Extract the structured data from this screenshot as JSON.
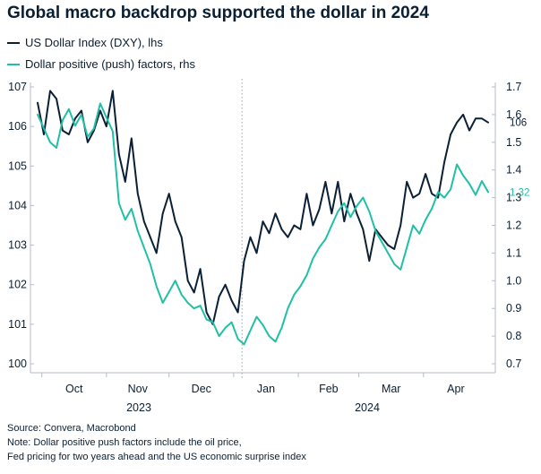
{
  "chart_data": {
    "type": "line",
    "title": "Global macro backdrop supported the dollar in 2024",
    "legend": [
      {
        "name": "US Dollar Index (DXY), lhs",
        "color": "#0b2036"
      },
      {
        "name": "Dollar positive (push) factors, rhs",
        "color": "#1fc0a6"
      }
    ],
    "y_left": {
      "ticks": [
        "100",
        "101",
        "102",
        "103",
        "104",
        "105",
        "106",
        "107"
      ],
      "range": [
        100,
        107
      ]
    },
    "y_right": {
      "ticks": [
        "0.7",
        "0.8",
        "0.9",
        "1.0",
        "1.1",
        "1.2",
        "1.3",
        "1.4",
        "1.5",
        "1.6",
        "1.7"
      ],
      "range": [
        0.7,
        1.7
      ]
    },
    "x_months": [
      "Oct",
      "Nov",
      "Dec",
      "Jan",
      "Feb",
      "Mar",
      "Apr"
    ],
    "x_years": [
      "2023",
      "2024"
    ],
    "x_range": [
      0,
      216
    ],
    "divider_x": 98,
    "end_labels": {
      "dxy": "106",
      "push": "1.32"
    },
    "series": [
      {
        "name": "US Dollar Index (DXY), lhs",
        "axis": "left",
        "x": [
          0,
          3,
          6,
          9,
          12,
          15,
          18,
          21,
          24,
          27,
          30,
          33,
          36,
          39,
          42,
          45,
          48,
          51,
          54,
          57,
          60,
          63,
          66,
          69,
          72,
          75,
          78,
          81,
          84,
          87,
          90,
          93,
          96,
          99,
          102,
          105,
          108,
          111,
          114,
          117,
          120,
          123,
          126,
          129,
          132,
          135,
          138,
          141,
          144,
          147,
          150,
          153,
          156,
          159,
          162,
          165,
          168,
          171,
          174,
          177,
          180,
          183,
          186,
          189,
          192,
          195,
          198,
          201,
          204,
          207,
          210,
          213,
          216
        ],
        "values": [
          106.6,
          105.8,
          106.9,
          106.7,
          105.9,
          105.8,
          106.2,
          106.4,
          105.6,
          105.9,
          106.4,
          106.0,
          106.9,
          105.3,
          104.6,
          105.7,
          104.3,
          103.6,
          103.2,
          102.8,
          103.8,
          104.3,
          103.6,
          103.2,
          102.1,
          101.8,
          102.4,
          101.3,
          101.0,
          101.7,
          102.0,
          101.6,
          101.3,
          102.6,
          103.2,
          102.8,
          103.6,
          103.3,
          103.8,
          103.4,
          103.2,
          103.5,
          103.4,
          104.3,
          103.5,
          103.9,
          104.6,
          103.8,
          104.6,
          103.6,
          104.3,
          103.8,
          103.4,
          102.6,
          103.4,
          103.2,
          103.0,
          102.9,
          103.5,
          104.6,
          104.2,
          104.3,
          104.8,
          104.3,
          104.2,
          105.1,
          105.8,
          106.1,
          106.3,
          105.9,
          106.2,
          106.2,
          106.1
        ]
      },
      {
        "name": "Dollar positive (push) factors, rhs",
        "axis": "right",
        "x": [
          0,
          3,
          6,
          9,
          12,
          15,
          18,
          21,
          24,
          27,
          30,
          33,
          36,
          39,
          42,
          45,
          48,
          51,
          54,
          57,
          60,
          63,
          66,
          69,
          72,
          75,
          78,
          81,
          84,
          87,
          90,
          93,
          96,
          99,
          102,
          105,
          108,
          111,
          114,
          117,
          120,
          123,
          126,
          129,
          132,
          135,
          138,
          141,
          144,
          147,
          150,
          153,
          156,
          159,
          162,
          165,
          168,
          171,
          174,
          177,
          180,
          183,
          186,
          189,
          192,
          195,
          198,
          201,
          204,
          207,
          210,
          213,
          216
        ],
        "values": [
          1.6,
          1.55,
          1.5,
          1.48,
          1.58,
          1.62,
          1.56,
          1.6,
          1.52,
          1.55,
          1.64,
          1.59,
          1.54,
          1.28,
          1.22,
          1.26,
          1.18,
          1.12,
          1.06,
          0.98,
          0.92,
          0.96,
          1.0,
          0.95,
          0.92,
          0.9,
          0.91,
          0.86,
          0.85,
          0.8,
          0.83,
          0.85,
          0.79,
          0.77,
          0.82,
          0.87,
          0.84,
          0.8,
          0.78,
          0.83,
          0.9,
          0.95,
          0.98,
          1.02,
          1.08,
          1.12,
          1.15,
          1.2,
          1.25,
          1.28,
          1.23,
          1.27,
          1.3,
          1.25,
          1.18,
          1.14,
          1.1,
          1.06,
          1.04,
          1.12,
          1.2,
          1.17,
          1.22,
          1.26,
          1.32,
          1.3,
          1.33,
          1.42,
          1.38,
          1.35,
          1.31,
          1.36,
          1.32
        ]
      }
    ]
  },
  "footer": {
    "source": "Source: Convera, Macrobond",
    "note_line1": "Note: Dollar positive push factors include the oil price,",
    "note_line2": "Fed pricing for two years ahead and the US economic surprise index"
  }
}
